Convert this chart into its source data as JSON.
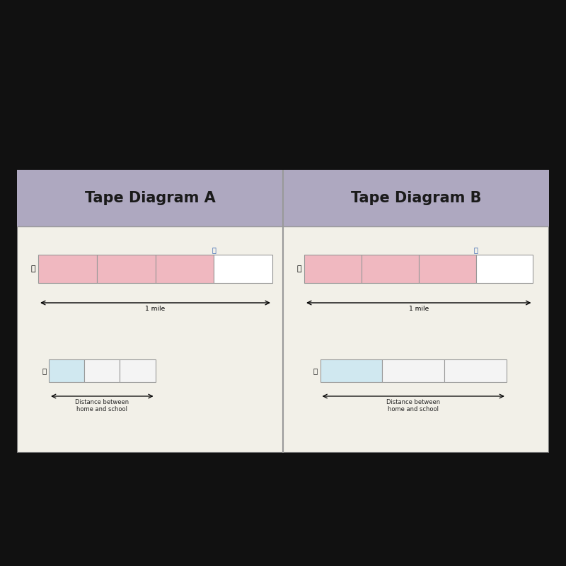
{
  "title_a": "Tape Diagram A",
  "title_b": "Tape Diagram B",
  "header_bg": "#aea8c0",
  "content_bg_a": "#e8e8e0",
  "content_bg_b": "#e0e8e8",
  "divider_color": "#888888",
  "tape_pink": "#f0b8c0",
  "tape_white": "#ffffff",
  "tape_blue_light": "#d0e8f0",
  "tape_b_content_bg": "#dde8e8",
  "label_1mile": "1 mile",
  "label_distance": "Distance between\nhome and school",
  "outer_bg": "#111111",
  "panel_border": "#888888",
  "title_fontsize": 15,
  "label_fontsize": 7,
  "small_label_fontsize": 6
}
